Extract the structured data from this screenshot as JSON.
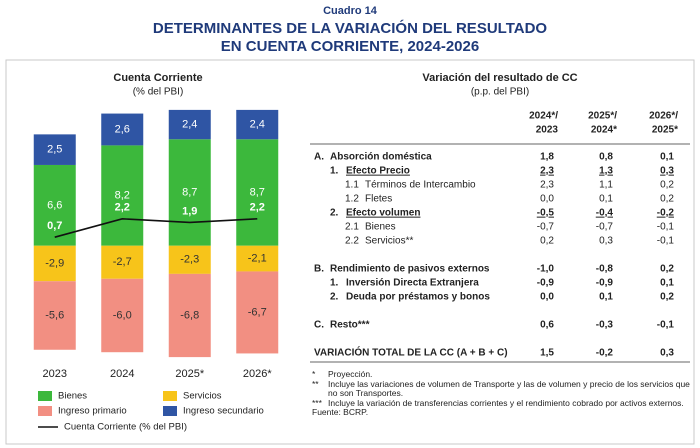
{
  "header": {
    "label": "Cuadro 14",
    "title_line1": "DETERMINANTES DE LA VARIACIÓN DEL RESULTADO",
    "title_line2": "EN CUENTA CORRIENTE, 2024-2026"
  },
  "chart_data": {
    "type": "bar",
    "stacked": true,
    "title": "Cuenta Corriente",
    "subtitle": "(% del PBI)",
    "categories": [
      "2023",
      "2024",
      "2025*",
      "2026*"
    ],
    "ylim": [
      -9.5,
      11.5
    ],
    "series": [
      {
        "name": "Bienes",
        "color": "#3cb83c",
        "label_color": "#ffffff",
        "values": [
          6.6,
          8.2,
          8.7,
          8.7
        ],
        "value_labels": [
          "6,6",
          "8,2",
          "8,7",
          "8,7"
        ]
      },
      {
        "name": "Servicios",
        "color": "#f7c41a",
        "label_color": "#333333",
        "values": [
          -2.9,
          -2.7,
          -2.3,
          -2.1
        ],
        "value_labels": [
          "-2,9",
          "-2,7",
          "-2,3",
          "-2,1"
        ]
      },
      {
        "name": "Ingreso primario",
        "color": "#f28f82",
        "label_color": "#333333",
        "values": [
          -5.6,
          -6.0,
          -6.8,
          -6.7
        ],
        "value_labels": [
          "-5,6",
          "-6,0",
          "-6,8",
          "-6,7"
        ]
      },
      {
        "name": "Ingreso secundario",
        "color": "#2f55a4",
        "label_color": "#ffffff",
        "values": [
          2.5,
          2.6,
          2.4,
          2.4
        ],
        "value_labels": [
          "2,5",
          "2,6",
          "2,4",
          "2,4"
        ]
      }
    ],
    "line": {
      "name": "Cuenta Corriente (% del PBI)",
      "color": "#111111",
      "label_color": "#ffffff",
      "values": [
        0.7,
        2.2,
        1.9,
        2.2
      ],
      "value_labels": [
        "0,7",
        "2,2",
        "1,9",
        "2,2"
      ]
    }
  },
  "table": {
    "title": "Variación del resultado de CC",
    "subtitle": "(p.p. del PBI)",
    "columns": [
      {
        "line1": "2024*/",
        "line2": "2023"
      },
      {
        "line1": "2025*/",
        "line2": "2024*"
      },
      {
        "line1": "2026*/",
        "line2": "2025*"
      }
    ],
    "rows": [
      {
        "num": "A.",
        "label": "Absorción doméstica",
        "level": 0,
        "bold": true,
        "values": [
          "1,8",
          "0,8",
          "0,1"
        ]
      },
      {
        "num": "1.",
        "label": "Efecto Precio",
        "level": 1,
        "bold": true,
        "underline": true,
        "values": [
          "2,3",
          "1,3",
          "0,3"
        ]
      },
      {
        "num": "1.1",
        "label": "Términos de Intercambio",
        "level": 2,
        "values": [
          "2,3",
          "1,1",
          "0,2"
        ]
      },
      {
        "num": "1.2",
        "label": "Fletes",
        "level": 2,
        "values": [
          "0,0",
          "0,1",
          "0,2"
        ]
      },
      {
        "num": "2.",
        "label": "Efecto volumen",
        "level": 1,
        "bold": true,
        "underline": true,
        "values": [
          "-0,5",
          "-0,4",
          "-0,2"
        ]
      },
      {
        "num": "2.1",
        "label": "Bienes",
        "level": 2,
        "values": [
          "-0,7",
          "-0,7",
          "-0,1"
        ]
      },
      {
        "num": "2.2",
        "label": "Servicios**",
        "level": 2,
        "values": [
          "0,2",
          "0,3",
          "-0,1"
        ]
      },
      {
        "num": "B.",
        "label": "Rendimiento de pasivos externos",
        "level": 0,
        "bold": true,
        "gap": true,
        "values": [
          "-1,0",
          "-0,8",
          "0,2"
        ]
      },
      {
        "num": "1.",
        "label": "Inversión Directa Extranjera",
        "level": 1,
        "bold": true,
        "values": [
          "-0,9",
          "-0,9",
          "0,1"
        ]
      },
      {
        "num": "2.",
        "label": "Deuda por préstamos y bonos",
        "level": 1,
        "bold": true,
        "values": [
          "0,0",
          "0,1",
          "0,2"
        ]
      },
      {
        "num": "C.",
        "label": "Resto***",
        "level": 0,
        "bold": true,
        "gap": true,
        "values": [
          "0,6",
          "-0,3",
          "-0,1"
        ]
      },
      {
        "label": "VARIACIÓN TOTAL DE LA CC (A + B + C)",
        "level": 0,
        "bold": true,
        "gap": true,
        "values": [
          "1,5",
          "-0,2",
          "0,3"
        ]
      }
    ]
  },
  "notes": [
    {
      "mark": "*",
      "text": "Proyección."
    },
    {
      "mark": "**",
      "text": "Incluye las variaciones de volumen de Transporte y las de volumen y precio de los servicios que no son Transportes."
    },
    {
      "mark": "***",
      "text": "Incluye la variación de transferencias corrientes y el rendimiento cobrado por activos externos."
    }
  ],
  "source": "Fuente: BCRP."
}
